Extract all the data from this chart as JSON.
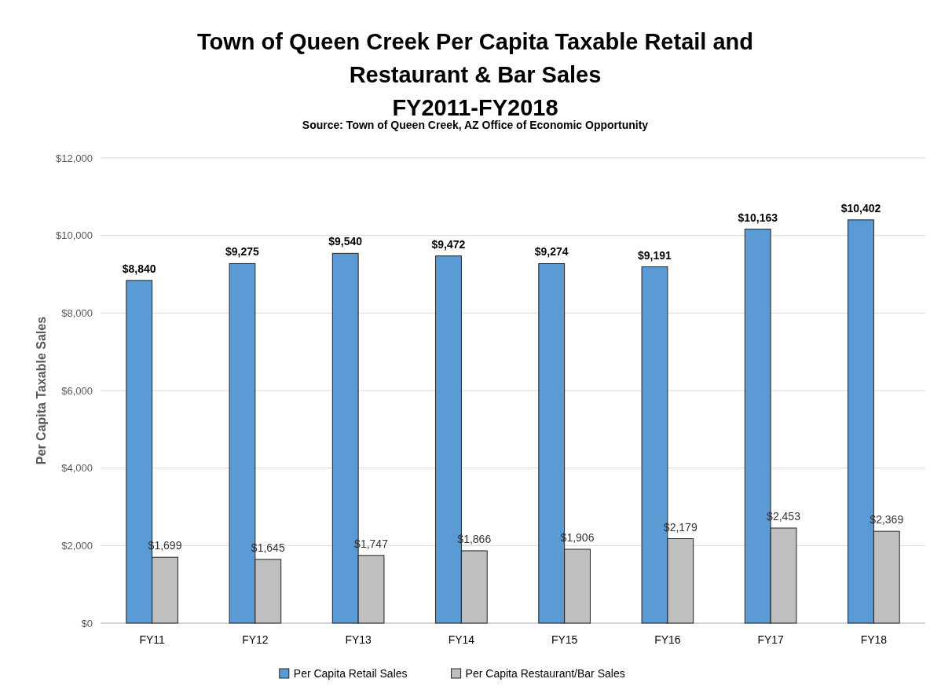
{
  "chart_data": {
    "type": "bar",
    "title": "Town of Queen Creek Per Capita Taxable Retail and\nRestaurant & Bar Sales\nFY2011-FY2018",
    "subtitle": "Source: Town of Queen Creek, AZ Office of Economic Opportunity",
    "ylabel": "Per Capita Taxable Sales",
    "categories": [
      "FY11",
      "FY12",
      "FY13",
      "FY14",
      "FY15",
      "FY16",
      "FY17",
      "FY18"
    ],
    "series": [
      {
        "name": "Per Capita Retail Sales",
        "color": "#5b9bd5",
        "values": [
          8840,
          9275,
          9540,
          9472,
          9274,
          9191,
          10163,
          10402
        ],
        "value_labels": [
          "$8,840",
          "$9,275",
          "$9,540",
          "$9,472",
          "$9,274",
          "$9,191",
          "$10,163",
          "$10,402"
        ]
      },
      {
        "name": "Per Capita Restaurant/Bar Sales",
        "color": "#bfbfbf",
        "values": [
          1699,
          1645,
          1747,
          1866,
          1906,
          2179,
          2453,
          2369
        ],
        "value_labels": [
          "$1,699",
          "$1,645",
          "$1,747",
          "$1,866",
          "$1,906",
          "$2,179",
          "$2,453",
          "$2,369"
        ]
      }
    ],
    "ylim": [
      0,
      12000
    ],
    "yticks": [
      {
        "value": 0,
        "label": "$0"
      },
      {
        "value": 2000,
        "label": "$2,000"
      },
      {
        "value": 4000,
        "label": "$4,000"
      },
      {
        "value": 6000,
        "label": "$6,000"
      },
      {
        "value": 8000,
        "label": "$8,000"
      },
      {
        "value": 10000,
        "label": "$10,000"
      },
      {
        "value": 12000,
        "label": "$12,000"
      }
    ],
    "grid": "y",
    "legend": "bottom"
  }
}
